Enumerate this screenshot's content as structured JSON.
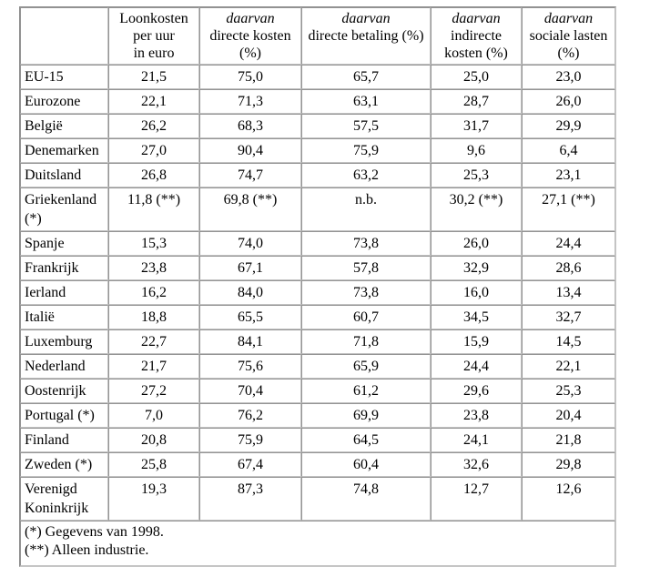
{
  "colors": {
    "background": "#ffffff",
    "text": "#000000",
    "border_dark": "#8d8d8d",
    "border_light": "#c2c2c2"
  },
  "table": {
    "header": {
      "col_country": "",
      "col_loonkosten": {
        "line1": "Loonkosten",
        "line2": "per uur",
        "line3": "in euro"
      },
      "col_directe_kosten": {
        "em": "daarvan",
        "line2": "directe kosten",
        "line3": "(%)"
      },
      "col_directe_betaling": {
        "em": "daarvan",
        "line2": "directe betaling (%)"
      },
      "col_indirecte_kosten": {
        "em": "daarvan",
        "line2": "indirecte",
        "line3": "kosten (%)"
      },
      "col_sociale_lasten": {
        "em": "daarvan",
        "line2": "sociale lasten",
        "line3": "(%)"
      }
    },
    "rows": [
      {
        "country": "EU-15",
        "values": [
          "21,5",
          "75,0",
          "65,7",
          "25,0",
          "23,0"
        ]
      },
      {
        "country": "Eurozone",
        "values": [
          "22,1",
          "71,3",
          "63,1",
          "28,7",
          "26,0"
        ]
      },
      {
        "country": "België",
        "values": [
          "26,2",
          "68,3",
          "57,5",
          "31,7",
          "29,9"
        ]
      },
      {
        "country": "Denemarken",
        "values": [
          "27,0",
          "90,4",
          "75,9",
          "9,6",
          "6,4"
        ]
      },
      {
        "country": "Duitsland",
        "values": [
          "26,8",
          "74,7",
          "63,2",
          "25,3",
          "23,1"
        ]
      },
      {
        "country": "Griekenland (*)",
        "values": [
          "11,8 (**)",
          "69,8 (**)",
          "n.b.",
          "30,2 (**)",
          "27,1 (**)"
        ]
      },
      {
        "country": "Spanje",
        "values": [
          "15,3",
          "74,0",
          "73,8",
          "26,0",
          "24,4"
        ]
      },
      {
        "country": "Frankrijk",
        "values": [
          "23,8",
          "67,1",
          "57,8",
          "32,9",
          "28,6"
        ]
      },
      {
        "country": "Ierland",
        "values": [
          "16,2",
          "84,0",
          "73,8",
          "16,0",
          "13,4"
        ]
      },
      {
        "country": "Italië",
        "values": [
          "18,8",
          "65,5",
          "60,7",
          "34,5",
          "32,7"
        ]
      },
      {
        "country": "Luxemburg",
        "values": [
          "22,7",
          "84,1",
          "71,8",
          "15,9",
          "14,5"
        ]
      },
      {
        "country": "Nederland",
        "values": [
          "21,7",
          "75,6",
          "65,9",
          "24,4",
          "22,1"
        ]
      },
      {
        "country": "Oostenrijk",
        "values": [
          "27,2",
          "70,4",
          "61,2",
          "29,6",
          "25,3"
        ]
      },
      {
        "country": "Portugal (*)",
        "values": [
          "7,0",
          "76,2",
          "69,9",
          "23,8",
          "20,4"
        ]
      },
      {
        "country": "Finland",
        "values": [
          "20,8",
          "75,9",
          "64,5",
          "24,1",
          "21,8"
        ]
      },
      {
        "country": "Zweden (*)",
        "values": [
          "25,8",
          "67,4",
          "60,4",
          "32,6",
          "29,8"
        ]
      },
      {
        "country": "Verenigd Koninkrijk",
        "values": [
          "19,3",
          "87,3",
          "74,8",
          "12,7",
          "12,6"
        ]
      }
    ],
    "footnotes": [
      "(*) Gegevens van 1998.",
      "(**) Alleen industrie."
    ]
  }
}
